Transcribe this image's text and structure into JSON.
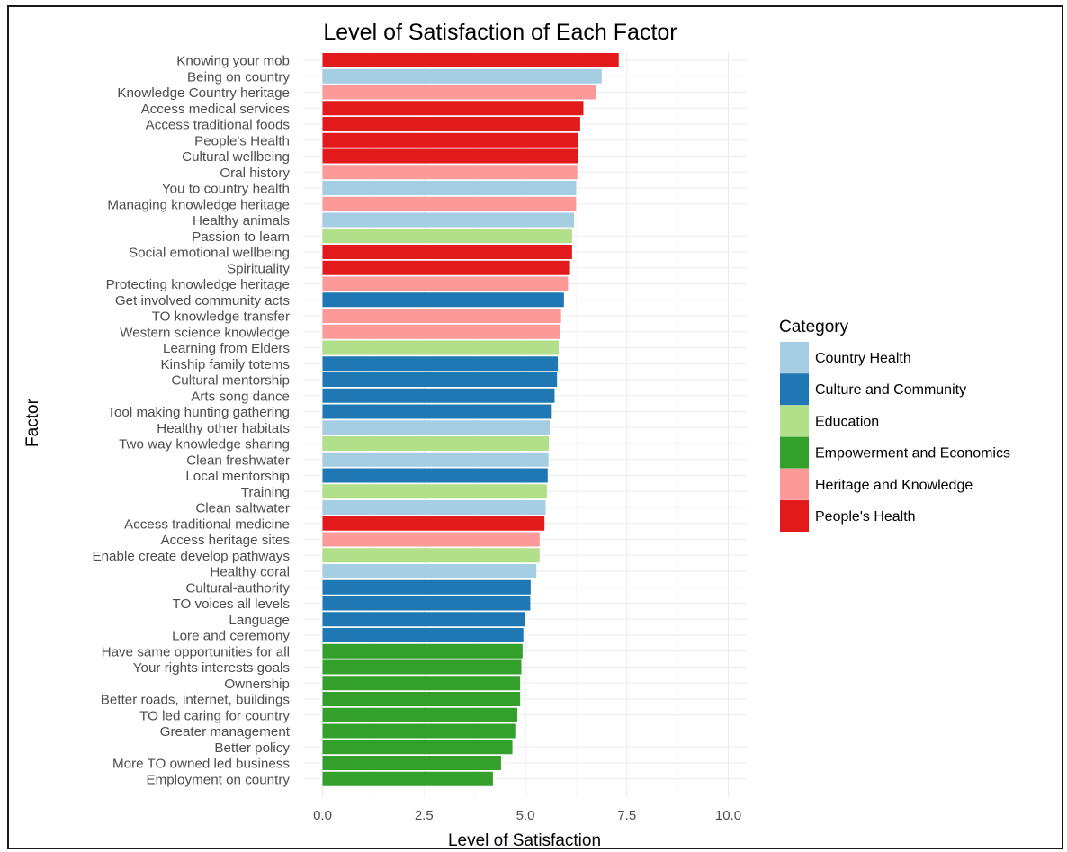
{
  "chart_data": {
    "type": "bar",
    "orientation": "horizontal",
    "title": "Level of Satisfaction of Each Factor",
    "xlabel": "Level of Satisfaction",
    "ylabel": "Factor",
    "xlim": [
      0,
      10.5
    ],
    "xticks": [
      "0.0",
      "2.5",
      "5.0",
      "7.5",
      "10.0"
    ],
    "xtick_values": [
      0,
      2.5,
      5,
      7.5,
      10
    ],
    "grid": true,
    "legend_position": "right",
    "legend": {
      "title": "Category",
      "entries": [
        {
          "label": "Country Health",
          "color": "#a6cee3"
        },
        {
          "label": "Culture and Community",
          "color": "#1f78b4"
        },
        {
          "label": "Education",
          "color": "#b2df8a"
        },
        {
          "label": "Empowerment and Economics",
          "color": "#33a02c"
        },
        {
          "label": "Heritage and Knowledge",
          "color": "#fb9a99"
        },
        {
          "label": "People's Health",
          "color": "#e31a1c"
        }
      ]
    },
    "bars": [
      {
        "label": "Knowing your mob",
        "value": 7.3,
        "category": 5
      },
      {
        "label": "Being on country",
        "value": 6.88,
        "category": 0
      },
      {
        "label": "Knowledge Country heritage",
        "value": 6.75,
        "category": 4
      },
      {
        "label": "Access medical services",
        "value": 6.43,
        "category": 5
      },
      {
        "label": "Access traditional foods",
        "value": 6.35,
        "category": 5
      },
      {
        "label": "People's Health",
        "value": 6.3,
        "category": 5
      },
      {
        "label": "Cultural wellbeing",
        "value": 6.3,
        "category": 5
      },
      {
        "label": "Oral history",
        "value": 6.28,
        "category": 4
      },
      {
        "label": "You to country health",
        "value": 6.25,
        "category": 0
      },
      {
        "label": "Managing knowledge heritage",
        "value": 6.25,
        "category": 4
      },
      {
        "label": "Healthy animals",
        "value": 6.2,
        "category": 0
      },
      {
        "label": "Passion to learn",
        "value": 6.15,
        "category": 2
      },
      {
        "label": "Social emotional wellbeing",
        "value": 6.15,
        "category": 5
      },
      {
        "label": "Spirituality",
        "value": 6.1,
        "category": 5
      },
      {
        "label": "Protecting knowledge heritage",
        "value": 6.05,
        "category": 4
      },
      {
        "label": "Get involved community acts",
        "value": 5.95,
        "category": 1
      },
      {
        "label": "TO knowledge transfer",
        "value": 5.88,
        "category": 4
      },
      {
        "label": "Western science knowledge",
        "value": 5.85,
        "category": 4
      },
      {
        "label": "Learning from Elders",
        "value": 5.82,
        "category": 2
      },
      {
        "label": "Kinship family totems",
        "value": 5.8,
        "category": 1
      },
      {
        "label": "Cultural mentorship",
        "value": 5.78,
        "category": 1
      },
      {
        "label": "Arts song dance",
        "value": 5.72,
        "category": 1
      },
      {
        "label": "Tool making hunting gathering",
        "value": 5.65,
        "category": 1
      },
      {
        "label": "Healthy other habitats",
        "value": 5.6,
        "category": 0
      },
      {
        "label": "Two way knowledge sharing",
        "value": 5.58,
        "category": 2
      },
      {
        "label": "Clean freshwater",
        "value": 5.57,
        "category": 0
      },
      {
        "label": "Local mentorship",
        "value": 5.55,
        "category": 1
      },
      {
        "label": "Training",
        "value": 5.53,
        "category": 2
      },
      {
        "label": "Clean saltwater",
        "value": 5.5,
        "category": 0
      },
      {
        "label": "Access traditional medicine",
        "value": 5.47,
        "category": 5
      },
      {
        "label": "Access heritage sites",
        "value": 5.35,
        "category": 4
      },
      {
        "label": "Enable create develop pathways",
        "value": 5.35,
        "category": 2
      },
      {
        "label": "Healthy coral",
        "value": 5.27,
        "category": 0
      },
      {
        "label": "Cultural-authority",
        "value": 5.13,
        "category": 1
      },
      {
        "label": "TO voices all levels",
        "value": 5.12,
        "category": 1
      },
      {
        "label": "Language",
        "value": 5.0,
        "category": 1
      },
      {
        "label": "Lore and ceremony",
        "value": 4.95,
        "category": 1
      },
      {
        "label": "Have same opportunities for all",
        "value": 4.93,
        "category": 3
      },
      {
        "label": "Your rights interests goals",
        "value": 4.9,
        "category": 3
      },
      {
        "label": "Ownership",
        "value": 4.87,
        "category": 3
      },
      {
        "label": "Better roads, internet, buildings",
        "value": 4.87,
        "category": 3
      },
      {
        "label": "TO led caring for country",
        "value": 4.8,
        "category": 3
      },
      {
        "label": "Greater management",
        "value": 4.75,
        "category": 3
      },
      {
        "label": "Better policy",
        "value": 4.68,
        "category": 3
      },
      {
        "label": "More TO owned led business",
        "value": 4.4,
        "category": 3
      },
      {
        "label": "Employment on country",
        "value": 4.2,
        "category": 3
      }
    ]
  }
}
